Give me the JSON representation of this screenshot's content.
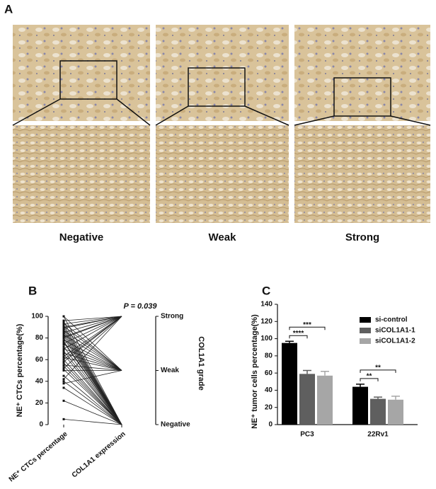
{
  "panel_a": {
    "label": "A",
    "captions": [
      "Negative",
      "Weak",
      "Strong"
    ]
  },
  "chart_data": [
    {
      "type": "paired",
      "panel_label": "B",
      "ylabel": "NE⁺ CTCs percentage(%)",
      "y2label": "COL1A1 grade",
      "annotation": "P = 0.039",
      "categories": [
        "NE⁺ CTCs percentage",
        "COL1A1 expression"
      ],
      "ylim": [
        0,
        100
      ],
      "yticks": [
        0,
        20,
        40,
        60,
        80,
        100
      ],
      "y2lim": [
        0,
        100
      ],
      "y2ticks": [
        {
          "value": 0,
          "label": "Negative"
        },
        {
          "value": 50,
          "label": "Weak"
        },
        {
          "value": 100,
          "label": "Strong"
        }
      ],
      "ctc_percentage": [
        100,
        96,
        95,
        94,
        93,
        92,
        91,
        90,
        89,
        88,
        87,
        86,
        85,
        84,
        83,
        82,
        81,
        80,
        78,
        77,
        76,
        75,
        74,
        72,
        70,
        68,
        66,
        65,
        63,
        62,
        60,
        58,
        57,
        55,
        54,
        52,
        51,
        50,
        45,
        42,
        40,
        38,
        34,
        22,
        5,
        100,
        90,
        80,
        70,
        60
      ],
      "col1a1_grade": [
        0,
        100,
        0,
        50,
        100,
        0,
        50,
        0,
        100,
        0,
        50,
        0,
        100,
        0,
        50,
        0,
        100,
        0,
        50,
        0,
        0,
        100,
        50,
        0,
        100,
        0,
        50,
        0,
        100,
        50,
        0,
        100,
        0,
        50,
        0,
        100,
        0,
        50,
        0,
        100,
        0,
        50,
        0,
        0,
        0,
        50,
        100,
        100,
        50,
        100
      ]
    },
    {
      "type": "bar",
      "panel_label": "C",
      "ylabel": "NE⁺ tumor cells percentage(%)",
      "categories": [
        "PC3",
        "22Rv1"
      ],
      "ylim": [
        0,
        140
      ],
      "yticks": [
        0,
        20,
        40,
        60,
        80,
        100,
        120,
        140
      ],
      "series": [
        {
          "name": "si-control",
          "color": "#000000",
          "values": [
            95,
            44
          ],
          "errors": [
            2,
            3
          ]
        },
        {
          "name": "siCOL1A1-1",
          "color": "#5f5f5f",
          "values": [
            59,
            30
          ],
          "errors": [
            4,
            2
          ]
        },
        {
          "name": "siCOL1A1-2",
          "color": "#a6a6a6",
          "values": [
            57,
            29
          ],
          "errors": [
            5,
            4
          ]
        }
      ],
      "annotations": [
        {
          "text": "****",
          "category": 0,
          "from": 0,
          "to": 1
        },
        {
          "text": "***",
          "category": 0,
          "from": 0,
          "to": 2
        },
        {
          "text": "**",
          "category": 1,
          "from": 0,
          "to": 1
        },
        {
          "text": "**",
          "category": 1,
          "from": 0,
          "to": 2
        }
      ]
    }
  ]
}
